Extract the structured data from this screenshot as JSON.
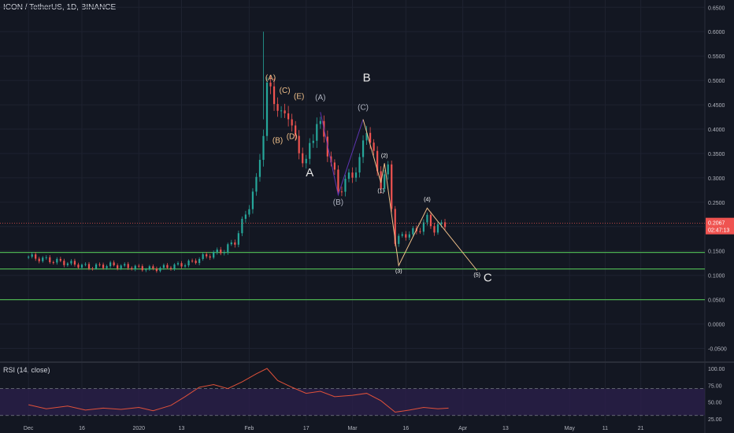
{
  "header": {
    "title": "ICON / TetherUS, 1D, BINANCE"
  },
  "price_label": {
    "value": "0.2067",
    "countdown": "02:47:13"
  },
  "rsi_panel": {
    "title": "RSI (14, close)"
  },
  "colors": {
    "background": "#131722",
    "grid": "#1e2230",
    "up": "#26a69a",
    "down": "#ef5350",
    "support_line": "#4caf50",
    "wave_label": "#f0c08a",
    "wave_label_grey": "#aeb3bf",
    "main_wave": "#e6e6e6",
    "abc_line": "#5e35b1",
    "projection_line": "#f0c08a",
    "rsi_line": "#e0513a",
    "rsi_band": "#2a1f4a",
    "price_marker": "#ef5350"
  },
  "chart_data": {
    "type": "candlestick",
    "title": "ICON / TetherUS, 1D, BINANCE",
    "y_axis": {
      "ticks": [
        "0.6500",
        "0.6000",
        "0.5500",
        "0.5000",
        "0.4500",
        "0.4000",
        "0.3500",
        "0.3000",
        "0.2500",
        "0.2000",
        "0.1500",
        "0.1000",
        "0.0500",
        "0.0000",
        "-0.0500"
      ],
      "range": [
        -0.075,
        0.665
      ],
      "scale": "linear"
    },
    "x_axis": {
      "ticks": [
        "Dec",
        "16",
        "2020",
        "13",
        "Feb",
        "17",
        "Mar",
        "16",
        "Apr",
        "13",
        "May",
        "11",
        "21"
      ]
    },
    "last_price": 0.2067,
    "support_lines": [
      0.147,
      0.113,
      0.05
    ],
    "price_series": [
      {
        "date": "2019-12-01",
        "close": 0.138
      },
      {
        "date": "2019-12-07",
        "close": 0.131
      },
      {
        "date": "2019-12-13",
        "close": 0.124
      },
      {
        "date": "2019-12-18",
        "close": 0.117
      },
      {
        "date": "2019-12-24",
        "close": 0.121
      },
      {
        "date": "2019-12-31",
        "close": 0.116
      },
      {
        "date": "2020-01-05",
        "close": 0.113
      },
      {
        "date": "2020-01-10",
        "close": 0.118
      },
      {
        "date": "2020-01-15",
        "close": 0.125
      },
      {
        "date": "2020-01-20",
        "close": 0.14
      },
      {
        "date": "2020-01-25",
        "close": 0.152
      },
      {
        "date": "2020-01-28",
        "close": 0.17
      },
      {
        "date": "2020-01-31",
        "close": 0.225
      },
      {
        "date": "2020-02-03",
        "close": 0.29
      },
      {
        "date": "2020-02-05",
        "close": 0.4
      },
      {
        "date": "2020-02-06",
        "close": 0.48
      },
      {
        "date": "2020-02-08",
        "close": 0.47
      },
      {
        "date": "2020-02-10",
        "close": 0.42
      },
      {
        "date": "2020-02-12",
        "close": 0.44
      },
      {
        "date": "2020-02-14",
        "close": 0.37
      },
      {
        "date": "2020-02-17",
        "close": 0.33
      },
      {
        "date": "2020-02-20",
        "close": 0.42
      },
      {
        "date": "2020-02-23",
        "close": 0.36
      },
      {
        "date": "2020-02-26",
        "close": 0.275
      },
      {
        "date": "2020-02-29",
        "close": 0.3
      },
      {
        "date": "2020-03-03",
        "close": 0.33
      },
      {
        "date": "2020-03-05",
        "close": 0.41
      },
      {
        "date": "2020-03-07",
        "close": 0.34
      },
      {
        "date": "2020-03-09",
        "close": 0.29
      },
      {
        "date": "2020-03-11",
        "close": 0.315
      },
      {
        "date": "2020-03-13",
        "close": 0.17
      },
      {
        "date": "2020-03-16",
        "close": 0.185
      },
      {
        "date": "2020-03-19",
        "close": 0.19
      },
      {
        "date": "2020-03-22",
        "close": 0.215
      },
      {
        "date": "2020-03-24",
        "close": 0.195
      },
      {
        "date": "2020-03-27",
        "close": 0.2067
      }
    ],
    "wave_labels": [
      {
        "text": "(A)",
        "date": "2020-02-07",
        "y": 0.5
      },
      {
        "text": "(B)",
        "date": "2020-02-09",
        "y": 0.372
      },
      {
        "text": "(C)",
        "date": "2020-02-11",
        "y": 0.474
      },
      {
        "text": "(D)",
        "date": "2020-02-13",
        "y": 0.38
      },
      {
        "text": "(E)",
        "date": "2020-02-15",
        "y": 0.462
      },
      {
        "text": "(A)",
        "date": "2020-02-21",
        "y": 0.46
      },
      {
        "text": "(B)",
        "date": "2020-02-26",
        "y": 0.245
      },
      {
        "text": "(C)",
        "date": "2020-03-04",
        "y": 0.44
      },
      {
        "text": "(1)",
        "date": "2020-03-09",
        "y": 0.27
      },
      {
        "text": "(2)",
        "date": "2020-03-10",
        "y": 0.342
      },
      {
        "text": "(3)",
        "date": "2020-03-14",
        "y": 0.105
      },
      {
        "text": "(4)",
        "date": "2020-03-22",
        "y": 0.252
      },
      {
        "text": "(5)",
        "date": "2020-04-05",
        "y": 0.097
      }
    ],
    "main_wave_labels": [
      {
        "text": "A",
        "date": "2020-02-18",
        "y": 0.303
      },
      {
        "text": "B",
        "date": "2020-03-05",
        "y": 0.498
      },
      {
        "text": "C",
        "date": "2020-04-08",
        "y": 0.087
      }
    ],
    "rsi": {
      "title": "RSI (14, close)",
      "ticks": [
        "100.00",
        "75.00",
        "50.00",
        "25.00"
      ],
      "range": [
        25,
        100
      ],
      "bands": [
        70,
        30
      ],
      "values": [
        {
          "date": "2019-12-01",
          "v": 46
        },
        {
          "date": "2019-12-06",
          "v": 40
        },
        {
          "date": "2019-12-12",
          "v": 44
        },
        {
          "date": "2019-12-17",
          "v": 38
        },
        {
          "date": "2019-12-22",
          "v": 41
        },
        {
          "date": "2019-12-27",
          "v": 39
        },
        {
          "date": "2020-01-01",
          "v": 42
        },
        {
          "date": "2020-01-05",
          "v": 37
        },
        {
          "date": "2020-01-10",
          "v": 45
        },
        {
          "date": "2020-01-14",
          "v": 58
        },
        {
          "date": "2020-01-18",
          "v": 72
        },
        {
          "date": "2020-01-22",
          "v": 76
        },
        {
          "date": "2020-01-26",
          "v": 70
        },
        {
          "date": "2020-01-30",
          "v": 80
        },
        {
          "date": "2020-02-03",
          "v": 92
        },
        {
          "date": "2020-02-06",
          "v": 100
        },
        {
          "date": "2020-02-09",
          "v": 82
        },
        {
          "date": "2020-02-13",
          "v": 72
        },
        {
          "date": "2020-02-17",
          "v": 63
        },
        {
          "date": "2020-02-21",
          "v": 66
        },
        {
          "date": "2020-02-25",
          "v": 58
        },
        {
          "date": "2020-03-01",
          "v": 60
        },
        {
          "date": "2020-03-05",
          "v": 63
        },
        {
          "date": "2020-03-09",
          "v": 52
        },
        {
          "date": "2020-03-13",
          "v": 35
        },
        {
          "date": "2020-03-17",
          "v": 38
        },
        {
          "date": "2020-03-21",
          "v": 42
        },
        {
          "date": "2020-03-25",
          "v": 40
        },
        {
          "date": "2020-03-28",
          "v": 41
        }
      ]
    }
  }
}
